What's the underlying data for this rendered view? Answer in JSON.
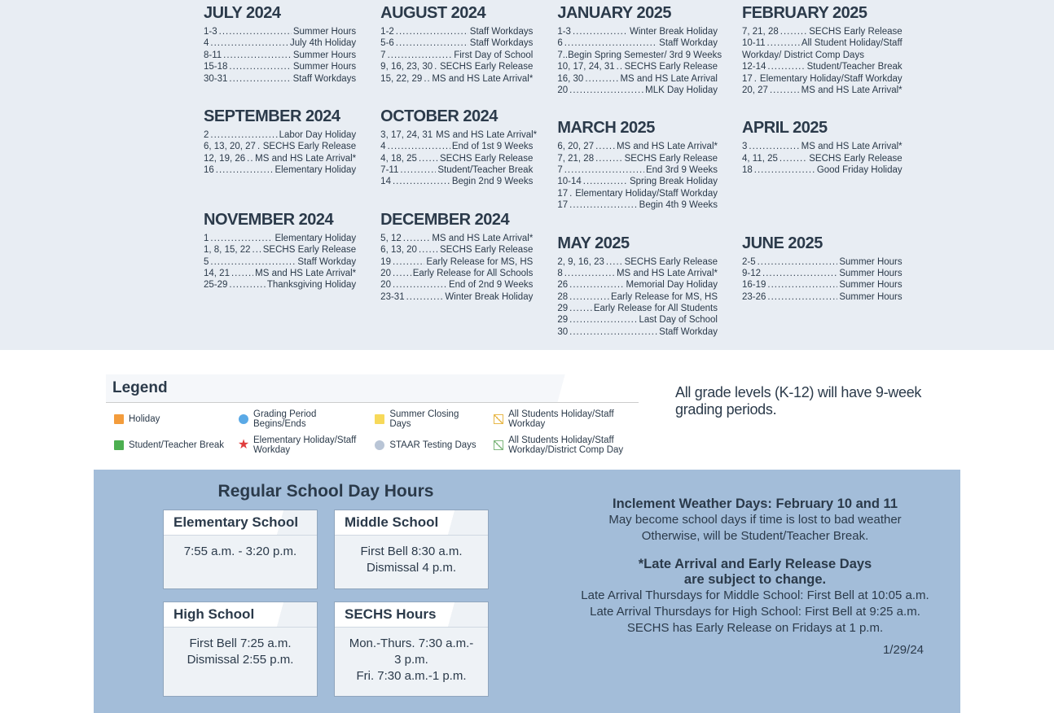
{
  "calendar": {
    "left": [
      [
        {
          "title": "JULY 2024",
          "events": [
            {
              "d": "1-3",
              "t": "Summer Hours"
            },
            {
              "d": "4",
              "t": "July 4th Holiday"
            },
            {
              "d": "8-11",
              "t": "Summer Hours"
            },
            {
              "d": "15-18",
              "t": "Summer Hours"
            },
            {
              "d": "30-31",
              "t": "Staff Workdays"
            }
          ]
        },
        {
          "title": "AUGUST 2024",
          "events": [
            {
              "d": "1-2",
              "t": "Staff Workdays"
            },
            {
              "d": "5-6",
              "t": "Staff Workdays"
            },
            {
              "d": "7",
              "t": "First Day of School"
            },
            {
              "d": "9, 16, 23, 30",
              "t": "SECHS Early Release"
            },
            {
              "d": "15, 22, 29",
              "t": "MS and HS Late Arrival*"
            }
          ]
        }
      ],
      [
        {
          "title": "SEPTEMBER 2024",
          "events": [
            {
              "d": "2",
              "t": "Labor Day Holiday"
            },
            {
              "d": "6, 13, 20, 27",
              "t": "SECHS Early Release"
            },
            {
              "d": "12, 19, 26",
              "t": "MS and HS Late Arrival*"
            },
            {
              "d": "16",
              "t": "Elementary Holiday"
            }
          ]
        },
        {
          "title": "OCTOBER 2024",
          "events": [
            {
              "d": "3, 17, 24, 31",
              "t": "MS and HS Late Arrival*"
            },
            {
              "d": "4",
              "t": "End of 1st 9 Weeks"
            },
            {
              "d": "4, 18, 25",
              "t": "SECHS Early Release"
            },
            {
              "d": "7-11",
              "t": "Student/Teacher Break"
            },
            {
              "d": "14",
              "t": "Begin 2nd 9 Weeks"
            }
          ]
        }
      ],
      [
        {
          "title": "NOVEMBER 2024",
          "events": [
            {
              "d": "1",
              "t": "Elementary Holiday"
            },
            {
              "d": "1, 8, 15, 22",
              "t": "SECHS Early Release"
            },
            {
              "d": "5",
              "t": "Staff Workday"
            },
            {
              "d": "14, 21",
              "t": "MS and HS Late Arrival*"
            },
            {
              "d": "25-29",
              "t": "Thanksgiving Holiday"
            }
          ]
        },
        {
          "title": "DECEMBER 2024",
          "events": [
            {
              "d": "5, 12",
              "t": "MS and HS Late Arrival*"
            },
            {
              "d": "6, 13, 20",
              "t": "SECHS Early Release"
            },
            {
              "d": "19",
              "t": "Early Release for MS, HS"
            },
            {
              "d": "20",
              "t": "Early Release for All Schools"
            },
            {
              "d": "20",
              "t": "End of 2nd 9 Weeks"
            },
            {
              "d": "23-31",
              "t": "Winter Break Holiday"
            }
          ]
        }
      ]
    ],
    "right": [
      [
        {
          "title": "JANUARY 2025",
          "events": [
            {
              "d": "1-3",
              "t": "Winter Break Holiday"
            },
            {
              "d": "6",
              "t": "Staff Workday"
            },
            {
              "d": "7..Begin Spring Semester/ 3rd 9 Weeks",
              "t": "",
              "nodots": true
            },
            {
              "d": "10, 17, 24, 31",
              "t": "SECHS Early Release"
            },
            {
              "d": "16, 30",
              "t": "MS and HS Late Arrival"
            },
            {
              "d": "20",
              "t": "MLK Day Holiday"
            }
          ]
        },
        {
          "title": "FEBRUARY 2025",
          "events": [
            {
              "d": "7, 21, 28",
              "t": "SECHS Early Release"
            },
            {
              "d": "10-11",
              "t": "All Student Holiday/Staff"
            },
            {
              "d": "Workday/ District Comp Days",
              "t": "",
              "nodots": true
            },
            {
              "d": "12-14",
              "t": "Student/Teacher Break"
            },
            {
              "d": "17",
              "t": "Elementary Holiday/Staff Workday"
            },
            {
              "d": "20, 27",
              "t": "MS and HS Late Arrival*"
            }
          ]
        }
      ],
      [
        {
          "title": "MARCH 2025",
          "events": [
            {
              "d": "6, 20, 27",
              "t": "MS and HS Late Arrival*"
            },
            {
              "d": "7, 21, 28",
              "t": "SECHS Early Release"
            },
            {
              "d": "7",
              "t": "End 3rd 9 Weeks"
            },
            {
              "d": "10-14",
              "t": "Spring Break Holiday"
            },
            {
              "d": "17",
              "t": "Elementary Holiday/Staff Workday"
            },
            {
              "d": "17",
              "t": "Begin 4th 9 Weeks"
            }
          ]
        },
        {
          "title": "APRIL 2025",
          "events": [
            {
              "d": "3",
              "t": "MS and HS Late Arrival*"
            },
            {
              "d": "4, 11, 25",
              "t": "SECHS Early Release"
            },
            {
              "d": "18",
              "t": "Good Friday Holiday"
            }
          ]
        }
      ],
      [
        {
          "title": "MAY 2025",
          "events": [
            {
              "d": "2, 9, 16, 23",
              "t": "SECHS Early Release"
            },
            {
              "d": "8",
              "t": "MS and HS Late Arrival*"
            },
            {
              "d": "26",
              "t": "Memorial Day Holiday"
            },
            {
              "d": "28",
              "t": "Early Release for MS, HS"
            },
            {
              "d": "29",
              "t": "Early Release for All Students"
            },
            {
              "d": "29",
              "t": "Last Day of School"
            },
            {
              "d": "30",
              "t": "Staff Workday"
            }
          ]
        },
        {
          "title": "JUNE 2025",
          "events": [
            {
              "d": "2-5",
              "t": "Summer Hours"
            },
            {
              "d": "9-12",
              "t": "Summer Hours"
            },
            {
              "d": "16-19",
              "t": "Summer Hours"
            },
            {
              "d": "23-26",
              "t": "Summer Hours"
            }
          ]
        }
      ]
    ]
  },
  "legend": {
    "title": "Legend",
    "items": [
      {
        "type": "square",
        "color": "#f39c3c",
        "label": "Holiday"
      },
      {
        "type": "circle",
        "color": "#5aa9e6",
        "label": "Grading Period Begins/Ends"
      },
      {
        "type": "square",
        "color": "#f7d95a",
        "label": "Summer Closing Days"
      },
      {
        "type": "diag2",
        "color": "#e8b84a",
        "label": "All Students Holiday/Staff Workday"
      },
      {
        "type": "square",
        "color": "#4caf50",
        "label": "Student/Teacher Break"
      },
      {
        "type": "star",
        "color": "#e03c3c",
        "label": "Elementary Holiday/Staff Workday"
      },
      {
        "type": "circle",
        "color": "#b9c5d6",
        "label": "STAAR Testing Days"
      },
      {
        "type": "diag",
        "color": "#7fb77e",
        "label": "All Students Holiday/Staff Workday/District Comp Day"
      }
    ]
  },
  "gradingNote": "All grade levels (K-12) will have 9-week grading periods.",
  "hours": {
    "title": "Regular School Day Hours",
    "cards": [
      {
        "title": "Elementary School",
        "lines": [
          "7:55 a.m. - 3:20 p.m."
        ]
      },
      {
        "title": "Middle School",
        "lines": [
          "First Bell 8:30 a.m.",
          "Dismissal 4 p.m."
        ]
      },
      {
        "title": "High School",
        "lines": [
          "First Bell 7:25 a.m.",
          "Dismissal 2:55 p.m."
        ]
      },
      {
        "title": "SECHS Hours",
        "lines": [
          "Mon.-Thurs. 7:30 a.m.- 3 p.m.",
          "Fri. 7:30 a.m.-1 p.m."
        ]
      }
    ]
  },
  "info": {
    "weatherTitle": "Inclement Weather Days: February 10 and 11",
    "weatherLine1": "May become school days if time is lost to bad weather",
    "weatherLine2": "Otherwise, will be Student/Teacher Break.",
    "lateTitle1": "*Late Arrival and Early Release Days",
    "lateTitle2": "are subject to change.",
    "lateLine1": "Late Arrival Thursdays for Middle School: First Bell at 10:05 a.m.",
    "lateLine2": "Late Arrival Thursdays for High School: First Bell at 9:25 a.m.",
    "lateLine3": "SECHS has Early Release on Fridays at 1 p.m.",
    "date": "1/29/24"
  },
  "colors": {
    "panelBg": "#a3bdd9",
    "calBg": "#e8edf3",
    "text": "#2b3a4a"
  }
}
